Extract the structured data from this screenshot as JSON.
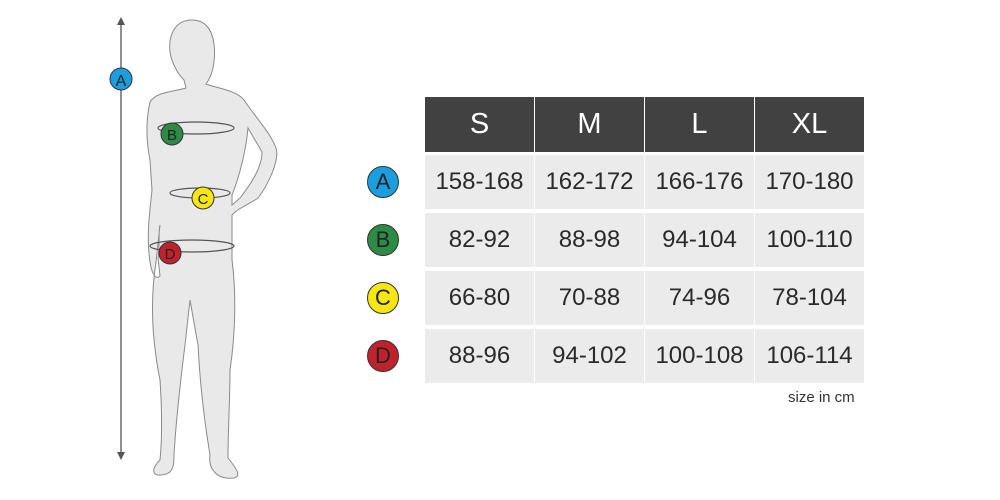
{
  "figure": {
    "markers": [
      {
        "label": "A",
        "color": "#1a9ee0"
      },
      {
        "label": "B",
        "color": "#2e8b45"
      },
      {
        "label": "C",
        "color": "#f5e614"
      },
      {
        "label": "D",
        "color": "#c0222b"
      }
    ]
  },
  "table": {
    "headers": [
      "S",
      "M",
      "L",
      "XL"
    ],
    "rows": [
      {
        "label": "A",
        "color": "#1a9ee0",
        "values": [
          "158-168",
          "162-172",
          "166-176",
          "170-180"
        ]
      },
      {
        "label": "B",
        "color": "#2e8b45",
        "values": [
          "82-92",
          "88-98",
          "94-104",
          "100-110"
        ]
      },
      {
        "label": "C",
        "color": "#f5e614",
        "values": [
          "66-80",
          "70-88",
          "74-96",
          "78-104"
        ]
      },
      {
        "label": "D",
        "color": "#c0222b",
        "values": [
          "88-96",
          "94-102",
          "100-108",
          "106-114"
        ]
      }
    ],
    "note": "size in cm"
  }
}
